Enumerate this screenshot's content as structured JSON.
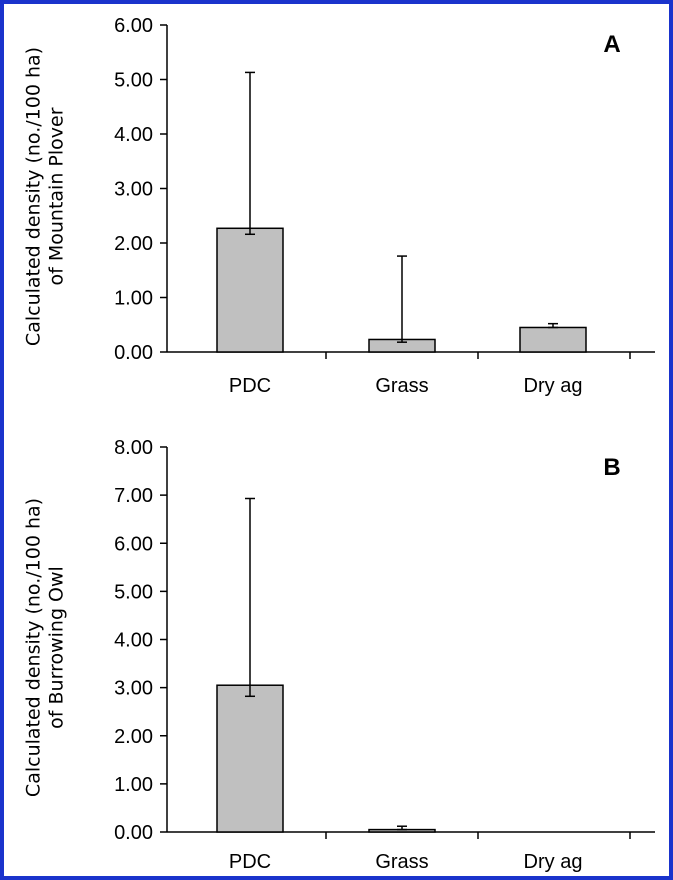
{
  "chart_data": [
    {
      "type": "bar",
      "panel_label": "A",
      "ylabel": [
        "Calculated density (no./100 ha)",
        "of Mountain Plover"
      ],
      "categories": [
        "PDC",
        "Grass",
        "Dry ag"
      ],
      "values": [
        2.27,
        0.23,
        0.45
      ],
      "error_upper": [
        5.13,
        1.76,
        0.52
      ],
      "error_lower": [
        2.16,
        0.18,
        0.45
      ],
      "ylim": [
        0,
        6
      ],
      "ytick_values": [
        0,
        1,
        2,
        3,
        4,
        5,
        6
      ],
      "ytick_labels": [
        "0.00",
        "1.00",
        "2.00",
        "3.00",
        "4.00",
        "5.00",
        "6.00"
      ],
      "bar_color": "#c0c0c0",
      "grid": false
    },
    {
      "type": "bar",
      "panel_label": "B",
      "ylabel": [
        "Calculated density (no./100 ha)",
        "of Burrowing Owl"
      ],
      "categories": [
        "PDC",
        "Grass",
        "Dry ag"
      ],
      "values": [
        3.05,
        0.05,
        0.0
      ],
      "error_upper": [
        6.93,
        0.12,
        0.0
      ],
      "error_lower": [
        2.82,
        0.05,
        0.0
      ],
      "ylim": [
        0,
        8
      ],
      "ytick_values": [
        0,
        1,
        2,
        3,
        4,
        5,
        6,
        7,
        8
      ],
      "ytick_labels": [
        "0.00",
        "1.00",
        "2.00",
        "3.00",
        "4.00",
        "5.00",
        "6.00",
        "7.00",
        "8.00"
      ],
      "bar_color": "#c0c0c0",
      "grid": false
    }
  ],
  "colors": {
    "frame": "#1a33cc",
    "bar": "#c0c0c0",
    "axis": "#000000"
  }
}
